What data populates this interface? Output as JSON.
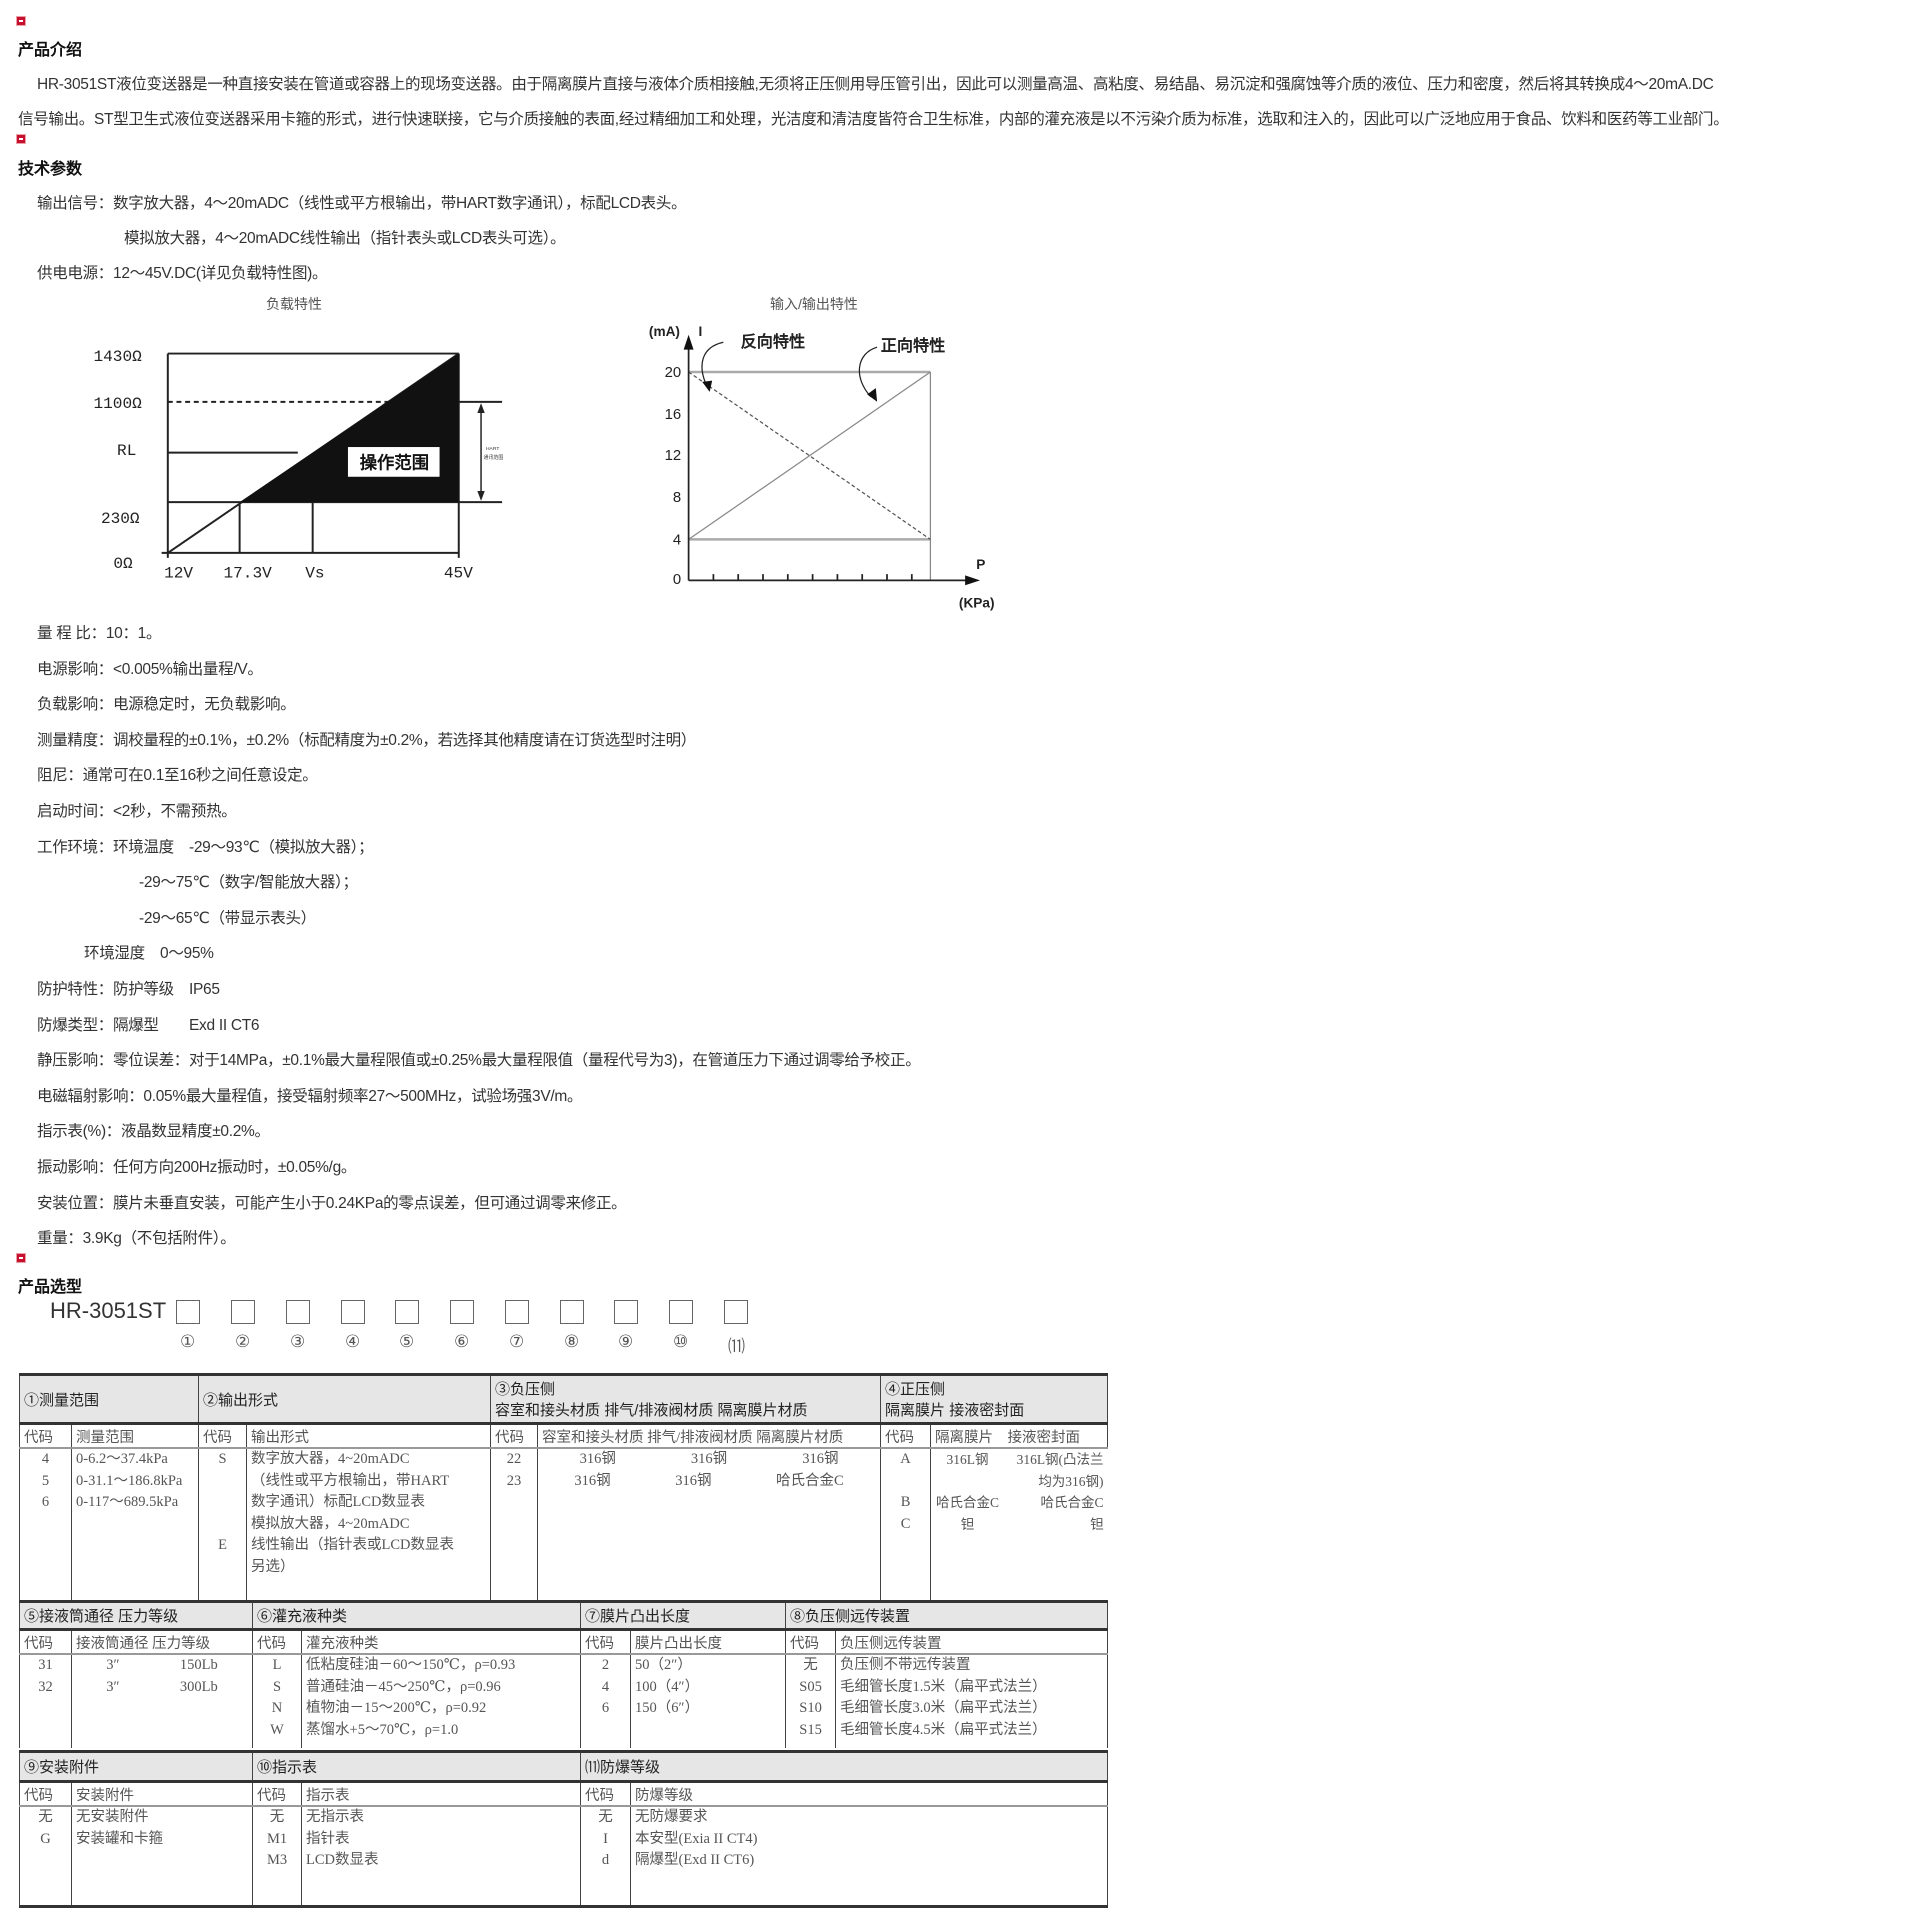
{
  "intro": {
    "heading": "产品介绍",
    "lines": [
      "HR-3051ST液位变送器是一种直接安装在管道或容器上的现场变送器。由于隔离膜片直接与液体介质相接触,无须将正压侧用导压管引出，因此可以测量高温、高粘度、易结晶、易沉淀和强腐蚀等介质的液位、压力和密度，然后将其转换成4～20mA.DC",
      "信号输出。ST型卫生式液位变送器采用卡箍的形式，进行快速联接，它与介质接触的表面,经过精细加工和处理，光洁度和清洁度皆符合卫生标准，内部的灌充液是以不污染介质为标准，选取和注入的，因此可以广泛地应用于食品、饮料和医药等工业部门。"
    ]
  },
  "tech": {
    "heading": "技术参数",
    "output_signal_1": "输出信号：数字放大器，4～20mADC（线性或平方根输出，带HART数字通讯），标配LCD表头。",
    "output_signal_2": "模拟放大器，4～20mADC线性输出（指针表头或LCD表头可选）。",
    "power": "供电电源：12～45V.DC(详见负载特性图)。",
    "specs": [
      "量 程 比：10：1。",
      "电源影响：<0.005%输出量程/V。",
      "负载影响：电源稳定时，无负载影响。",
      "测量精度：调校量程的±0.1%，±0.2%（标配精度为±0.2%，若选择其他精度请在订货选型时注明）",
      "阻尼：通常可在0.1至16秒之间任意设定。",
      "启动时间：<2秒，不需预热。",
      "工作环境：环境温度　-29～93℃（模拟放大器）；",
      "-29～75℃（数字/智能放大器）；",
      "-29～65℃（带显示表头）",
      "环境湿度　0～95%",
      "防护特性：防护等级　IP65",
      "防爆类型：隔爆型　　Exd II CT6",
      "静压影响：零位误差：对于14MPa，±0.1%最大量程限值或±0.25%最大量程限值（量程代号为3)，在管道压力下通过调零给予校正。",
      "电磁辐射影响：0.05%最大量程值，接受辐射频率27～500MHz，试验场强3V/m。",
      "指示表(%)：液晶数显精度±0.2%。",
      "振动影响：任何方向200Hz振动时，±0.05%/g。",
      "安装位置：膜片未垂直安装，可能产生小于0.24KPa的零点误差，但可通过调零来修正。",
      "重量：3.9Kg（不包括附件）。"
    ]
  },
  "load_chart": {
    "title": "负载特性",
    "y_labels": [
      "1430Ω",
      "1100Ω",
      "RL",
      "230Ω",
      "0Ω"
    ],
    "x_labels": [
      "12V",
      "17.3V",
      "Vs",
      "45V"
    ],
    "region_label": "操作范围",
    "hart_label_1": "HART",
    "hart_label_2": "通讯范围"
  },
  "io_chart": {
    "title": "输入/输出特性",
    "y_unit": "(mA)",
    "y_symbol": "I",
    "y_ticks": [
      "20",
      "16",
      "12",
      "8",
      "4",
      "0"
    ],
    "x_symbol": "P",
    "x_unit": "(KPa)",
    "reverse_label": "反向特性",
    "forward_label": "正向特性"
  },
  "selection": {
    "heading": "产品选型",
    "model": "HR-3051ST",
    "positions": [
      "①",
      "②",
      "③",
      "④",
      "⑤",
      "⑥",
      "⑦",
      "⑧",
      "⑨",
      "⑩",
      "⑾"
    ],
    "code_label": "代码",
    "s1": {
      "title": "①测量范围",
      "sub": "测量范围",
      "codes": "4\n5\n6",
      "values": "0-6.2～37.4kPa\n0-31.1～186.8kPa\n0-117～689.5kPa"
    },
    "s2": {
      "title": "②输出形式",
      "sub": "输出形式",
      "codes": "S\n\n\n\nE",
      "values": "数字放大器，4~20mADC\n（线性或平方根输出，带HART\n数字通讯）标配LCD数显表\n模拟放大器，4~20mADC\n线性输出（指针表或LCD数显表\n另选）"
    },
    "s3": {
      "title_1": "③负压侧",
      "title_2": "容室和接头材质 排气/排液阀材质 隔离膜片材质",
      "sub": "容室和接头材质 排气/排液阀材质 隔离膜片材质",
      "codes": "22\n23",
      "rows": [
        [
          "316钢",
          "316钢",
          "316钢"
        ],
        [
          "316钢",
          "316钢",
          "哈氏合金C"
        ]
      ]
    },
    "s4": {
      "title_1": "④正压侧",
      "title_2": "隔离膜片 接液密封面",
      "sub": "隔离膜片　接液密封面",
      "codes": "A\n\nB\nC",
      "col1": "316L钢\n\n哈氏合金C\n钽",
      "col2": "316L钢(凸法兰\n均为316钢)\n哈氏合金C\n钽"
    },
    "s5": {
      "title": "⑤接液筒通径 压力等级",
      "sub": "接液筒通径 压力等级",
      "codes": "31\n32",
      "dia": "3″\n3″",
      "rating": "150Lb\n300Lb"
    },
    "s6": {
      "title": "⑥灌充液种类",
      "sub": "灌充液种类",
      "codes": "L\nS\nN\nW",
      "values": "低粘度硅油－60～150℃，ρ=0.93\n普通硅油－45～250℃，ρ=0.96\n植物油－15～200℃，ρ=0.92\n蒸馏水+5～70℃，ρ=1.0"
    },
    "s7": {
      "title": "⑦膜片凸出长度",
      "sub": "膜片凸出长度",
      "codes": "2\n4\n6",
      "values": "50（2″）\n100（4″）\n150（6″）"
    },
    "s8": {
      "title": "⑧负压侧远传装置",
      "sub": "负压侧远传装置",
      "codes": "无\nS05\nS10\nS15",
      "values": "负压侧不带远传装置\n毛细管长度1.5米（扁平式法兰）\n毛细管长度3.0米（扁平式法兰）\n毛细管长度4.5米（扁平式法兰）"
    },
    "s9": {
      "title": "⑨安装附件",
      "sub": "安装附件",
      "codes": "无\nG",
      "values": "无安装附件\n安装罐和卡箍"
    },
    "s10": {
      "title": "⑩指示表",
      "sub": "指示表",
      "codes": "无\nM1\nM3",
      "values": "无指示表\n指针表\nLCD数显表"
    },
    "s11": {
      "title": "⑾防爆等级",
      "sub": "防爆等级",
      "codes": "无\nI\nd",
      "values": "无防爆要求\n本安型(Exia II CT4)\n隔爆型(Exd II CT6)"
    }
  },
  "colors": {
    "bullet": "#c8102e",
    "table_header": "#e6e6e6",
    "table_border": "#333333"
  }
}
